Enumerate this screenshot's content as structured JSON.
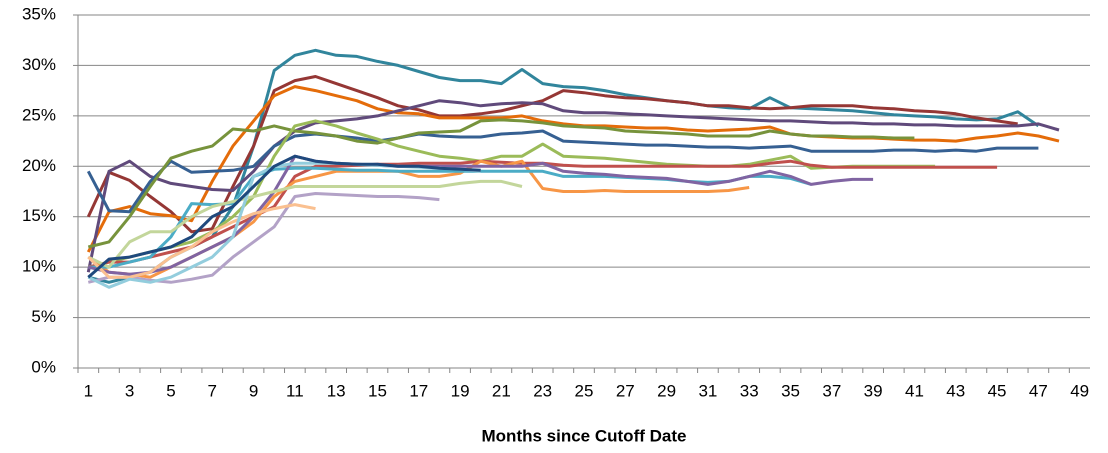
{
  "chart_data": {
    "type": "line",
    "x_label": "Months since Cutoff Date",
    "categories": [
      1,
      null,
      3,
      null,
      5,
      null,
      7,
      null,
      9,
      null,
      11,
      null,
      13,
      null,
      15,
      null,
      17,
      null,
      19,
      null,
      21,
      null,
      23,
      null,
      25,
      null,
      27,
      null,
      29,
      null,
      31,
      null,
      33,
      null,
      35,
      null,
      37,
      null,
      39,
      null,
      41,
      null,
      43,
      null,
      45,
      null,
      47,
      null,
      49
    ],
    "ylim": [
      0,
      35
    ],
    "yticks": [
      {
        "value": 0,
        "label": "0%"
      },
      {
        "value": 5,
        "label": "5%"
      },
      {
        "value": 10,
        "label": "10%"
      },
      {
        "value": 15,
        "label": "15%"
      },
      {
        "value": 20,
        "label": "20%"
      },
      {
        "value": 25,
        "label": "25%"
      },
      {
        "value": 30,
        "label": "30%"
      },
      {
        "value": 35,
        "label": "35%"
      }
    ],
    "grid": true,
    "series": [
      {
        "color": "#31859c",
        "values": [
          9,
          8.5,
          9,
          9.5,
          11,
          12,
          13,
          16,
          22,
          29.5,
          31,
          31.5,
          31,
          30.9,
          30.4,
          30,
          29.4,
          28.8,
          28.5,
          28.5,
          28.2,
          29.6,
          28.2,
          27.9,
          27.8,
          27.5,
          27.1,
          26.8,
          26.5,
          26.3,
          26,
          25.8,
          25.7,
          26.8,
          25.8,
          25.7,
          25.6,
          25.5,
          25.3,
          25.1,
          25,
          24.9,
          24.7,
          24.6,
          24.7,
          25.4,
          24,
          null,
          null
        ]
      },
      {
        "color": "#953735",
        "values": [
          15,
          19.4,
          18.6,
          17,
          15.5,
          13.5,
          13.8,
          18,
          22,
          27.5,
          28.5,
          28.9,
          28.2,
          27.5,
          26.8,
          26,
          25.6,
          25,
          25,
          25.2,
          25.5,
          26,
          26.5,
          27.5,
          27.3,
          27,
          26.8,
          26.7,
          26.5,
          26.3,
          26,
          26,
          25.8,
          25.7,
          25.8,
          26,
          26,
          26,
          25.8,
          25.7,
          25.5,
          25.4,
          25.2,
          24.8,
          24.5,
          24.2,
          null,
          null,
          null
        ]
      },
      {
        "color": "#e46c0a",
        "values": [
          11.5,
          15.5,
          16,
          15.3,
          15.1,
          14.6,
          18.5,
          22,
          24.5,
          27,
          27.9,
          27.5,
          27,
          26.5,
          25.7,
          25.3,
          25.2,
          24.8,
          24.8,
          24.8,
          24.8,
          25,
          24.5,
          24.2,
          24,
          24,
          23.9,
          23.8,
          23.8,
          23.6,
          23.5,
          23.6,
          23.7,
          23.9,
          23.2,
          23,
          22.9,
          22.8,
          22.8,
          22.7,
          22.6,
          22.6,
          22.5,
          22.8,
          23,
          23.3,
          23,
          22.5,
          null
        ]
      },
      {
        "color": "#604a7b",
        "values": [
          9.5,
          19.5,
          20.5,
          19,
          18.3,
          18,
          17.7,
          17.6,
          19.5,
          22,
          23.5,
          24.3,
          24.5,
          24.7,
          25,
          25.5,
          26,
          26.5,
          26.3,
          26,
          26.2,
          26.3,
          26.2,
          25.5,
          25.3,
          25.3,
          25.2,
          25.1,
          25,
          24.9,
          24.8,
          24.7,
          24.6,
          24.5,
          24.5,
          24.4,
          24.3,
          24.3,
          24.2,
          24.2,
          24.1,
          24.1,
          24,
          24,
          24,
          24,
          24.2,
          23.6,
          null
        ]
      },
      {
        "color": "#366092",
        "values": [
          19.5,
          15.6,
          15.5,
          18.5,
          20.5,
          19.4,
          19.5,
          19.6,
          20,
          22,
          23,
          23.2,
          23,
          22.8,
          22.5,
          22.8,
          23.2,
          23,
          22.9,
          22.9,
          23.2,
          23.3,
          23.5,
          22.5,
          22.4,
          22.3,
          22.2,
          22.1,
          22.1,
          22,
          21.9,
          21.9,
          21.8,
          21.9,
          22,
          21.5,
          21.5,
          21.5,
          21.5,
          21.6,
          21.6,
          21.5,
          21.6,
          21.5,
          21.8,
          21.8,
          21.8,
          null,
          null
        ]
      },
      {
        "color": "#77933c",
        "values": [
          12,
          12.5,
          15,
          18,
          20.8,
          21.5,
          22,
          23.7,
          23.5,
          24,
          23.5,
          23.3,
          23,
          22.5,
          22.3,
          22.8,
          23.3,
          23.4,
          23.5,
          24.5,
          24.6,
          24.5,
          24.3,
          24,
          23.9,
          23.8,
          23.5,
          23.4,
          23.3,
          23.2,
          23,
          23,
          23,
          23.5,
          23.2,
          23,
          23,
          22.9,
          22.9,
          22.8,
          22.8,
          null,
          null,
          null,
          null,
          null,
          null,
          null,
          null
        ]
      },
      {
        "color": "#9bbb59",
        "values": [
          10,
          10.5,
          11,
          11.5,
          12,
          12.5,
          13.5,
          15,
          17,
          21,
          24,
          24.5,
          24,
          23.3,
          22.7,
          22,
          21.5,
          21,
          20.8,
          20.5,
          21,
          21,
          22.2,
          21,
          20.9,
          20.8,
          20.6,
          20.4,
          20.2,
          20.1,
          20,
          20,
          20.2,
          20.6,
          21,
          19.8,
          19.9,
          20,
          20,
          20,
          20,
          20,
          null,
          null,
          null,
          null,
          null,
          null,
          null
        ]
      },
      {
        "color": "#c0504d",
        "values": [
          10,
          10.5,
          10.5,
          11,
          11.5,
          12,
          13,
          14,
          15,
          16,
          19,
          20,
          20,
          20.1,
          20.2,
          20.2,
          20.3,
          20.3,
          20.3,
          20.5,
          20.4,
          20.3,
          20.3,
          20.1,
          20,
          20,
          20,
          20,
          20,
          20,
          20,
          20,
          20,
          20.3,
          20.5,
          20.1,
          19.9,
          19.9,
          19.9,
          19.9,
          19.9,
          19.9,
          19.9,
          19.9,
          19.9,
          null,
          null,
          null,
          null
        ]
      },
      {
        "color": "#f79646",
        "values": [
          11,
          9.5,
          9.3,
          9,
          10,
          11,
          12,
          13,
          14.5,
          17,
          18.5,
          19,
          19.5,
          19.5,
          19.5,
          19.5,
          19,
          19,
          19.3,
          20.5,
          20,
          20.5,
          17.8,
          17.5,
          17.5,
          17.6,
          17.5,
          17.5,
          17.5,
          17.5,
          17.5,
          17.6,
          17.9,
          null,
          null,
          null,
          null,
          null,
          null,
          null,
          null,
          null,
          null,
          null,
          null,
          null,
          null,
          null,
          null
        ]
      },
      {
        "color": "#4bacc6",
        "values": [
          10,
          10,
          10.5,
          11,
          13,
          16.3,
          16.2,
          16.3,
          19,
          19.7,
          19.8,
          19.8,
          19.7,
          19.6,
          19.6,
          19.5,
          19.5,
          19.5,
          19.5,
          19.5,
          19.5,
          19.5,
          19.5,
          19,
          19,
          19,
          18.9,
          18.8,
          18.7,
          18.5,
          18.4,
          18.5,
          19,
          19,
          18.8,
          18.2,
          null,
          null,
          null,
          null,
          null,
          null,
          null,
          null,
          null,
          null,
          null,
          null,
          null
        ]
      },
      {
        "color": "#8064a2",
        "values": [
          10,
          9.5,
          9.3,
          9.5,
          10,
          11,
          12,
          13,
          15,
          17.5,
          21,
          20.5,
          20.3,
          20.2,
          20.1,
          20,
          20,
          20,
          20,
          20,
          20,
          20,
          20.3,
          19.5,
          19.3,
          19.2,
          19,
          18.9,
          18.8,
          18.5,
          18.2,
          18.5,
          19,
          19.5,
          19,
          18.2,
          18.5,
          18.7,
          18.7,
          null,
          null,
          null,
          null,
          null,
          null,
          null,
          null,
          null,
          null
        ]
      },
      {
        "color": "#c3d69b",
        "values": [
          11,
          10,
          12.5,
          13.5,
          13.5,
          15,
          16,
          16.5,
          17,
          17.5,
          18,
          18,
          18,
          18,
          18,
          18,
          18,
          18,
          18.3,
          18.5,
          18.5,
          18,
          null,
          null,
          null,
          null,
          null,
          null,
          null,
          null,
          null,
          null,
          null,
          null,
          null,
          null,
          null,
          null,
          null,
          null,
          null,
          null,
          null,
          null,
          null,
          null,
          null,
          null,
          null
        ]
      },
      {
        "color": "#b3a2c7",
        "values": [
          8.5,
          9,
          9,
          8.7,
          8.5,
          8.8,
          9.2,
          11,
          12.5,
          14,
          17,
          17.3,
          17.2,
          17.1,
          17,
          17,
          16.9,
          16.7,
          null,
          null,
          null,
          null,
          null,
          null,
          null,
          null,
          null,
          null,
          null,
          null,
          null,
          null,
          null,
          null,
          null,
          null,
          null,
          null,
          null,
          null,
          null,
          null,
          null,
          null,
          null,
          null,
          null,
          null,
          null
        ]
      },
      {
        "color": "#fac090",
        "values": [
          11,
          9,
          9,
          9.5,
          11,
          12,
          13.5,
          14.5,
          15.3,
          15.8,
          16.2,
          15.8,
          null,
          null,
          null,
          null,
          null,
          null,
          null,
          null,
          null,
          null,
          null,
          null,
          null,
          null,
          null,
          null,
          null,
          null,
          null,
          null,
          null,
          null,
          null,
          null,
          null,
          null,
          null,
          null,
          null,
          null,
          null,
          null,
          null,
          null,
          null,
          null,
          null
        ]
      },
      {
        "color": "#93cddd",
        "values": [
          9,
          8,
          8.8,
          8.5,
          9,
          10,
          11,
          13,
          19,
          20,
          20.3,
          20.3,
          20.3,
          20.2,
          20.1,
          20,
          19.9,
          19.8,
          19.7,
          19.5,
          null,
          null,
          null,
          null,
          null,
          null,
          null,
          null,
          null,
          null,
          null,
          null,
          null,
          null,
          null,
          null,
          null,
          null,
          null,
          null,
          null,
          null,
          null,
          null,
          null,
          null,
          null,
          null,
          null
        ]
      },
      {
        "color": "#1f497d",
        "values": [
          9,
          10.8,
          11,
          11.5,
          12,
          13,
          15,
          16,
          18,
          20,
          21,
          20.5,
          20.3,
          20.2,
          20.2,
          20,
          20,
          19.8,
          19.7,
          19.6,
          null,
          null,
          null,
          null,
          null,
          null,
          null,
          null,
          null,
          null,
          null,
          null,
          null,
          null,
          null,
          null,
          null,
          null,
          null,
          null,
          null,
          null,
          null,
          null,
          null,
          null,
          null,
          null,
          null
        ]
      }
    ]
  }
}
